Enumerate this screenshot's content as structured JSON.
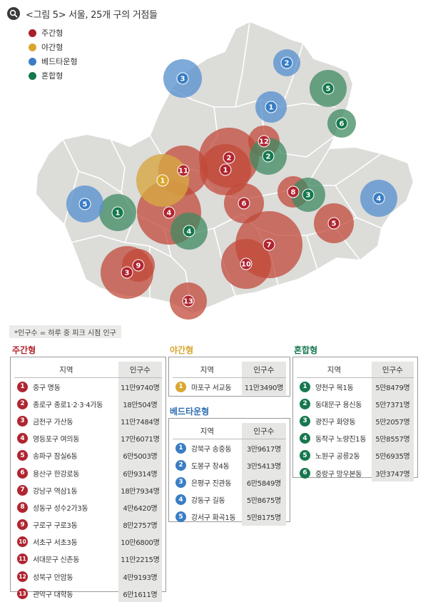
{
  "title": "<그림 5> 서울, 25개 구의 거점들",
  "legend": [
    {
      "label": "주간형",
      "color": "#a8202b"
    },
    {
      "label": "야간형",
      "color": "#d9a630"
    },
    {
      "label": "베드타운형",
      "color": "#3a7dc4"
    },
    {
      "label": "혼합형",
      "color": "#16784e"
    }
  ],
  "note": "*인구수 = 하루 중 피크 시점 인구",
  "tables": {
    "daytime": {
      "title": "주간형",
      "col_region": "지역",
      "col_pop": "인구수",
      "rows": [
        {
          "num": "1",
          "region": "중구 명동",
          "pop": "11만9740명"
        },
        {
          "num": "2",
          "region": "종로구 종로1·2·3·4가동",
          "pop": "18만504명"
        },
        {
          "num": "3",
          "region": "금천구 가산동",
          "pop": "11만7484명"
        },
        {
          "num": "4",
          "region": "영등포구 여의동",
          "pop": "17만6071명"
        },
        {
          "num": "5",
          "region": "송파구 잠실6동",
          "pop": "6만5003명"
        },
        {
          "num": "6",
          "region": "용산구 한강로동",
          "pop": "6만9314명"
        },
        {
          "num": "7",
          "region": "강남구 역삼1동",
          "pop": "18만7934명"
        },
        {
          "num": "8",
          "region": "성동구 성수2가3동",
          "pop": "4만6420명"
        },
        {
          "num": "9",
          "region": "구로구 구로3동",
          "pop": "8만2757명"
        },
        {
          "num": "10",
          "region": "서초구 서초3동",
          "pop": "10만6800명"
        },
        {
          "num": "11",
          "region": "서대문구 신촌동",
          "pop": "11만2215명"
        },
        {
          "num": "12",
          "region": "성북구 안암동",
          "pop": "4만9193명"
        },
        {
          "num": "13",
          "region": "관악구 대학동",
          "pop": "6만1611명"
        }
      ]
    },
    "night": {
      "title": "야간형",
      "col_region": "지역",
      "col_pop": "인구수",
      "rows": [
        {
          "num": "1",
          "region": "마포구 서교동",
          "pop": "11만3490명"
        }
      ]
    },
    "bedtown": {
      "title": "베드타운형",
      "col_region": "지역",
      "col_pop": "인구수",
      "rows": [
        {
          "num": "1",
          "region": "강북구 송중동",
          "pop": "3만9617명"
        },
        {
          "num": "2",
          "region": "도봉구 창4동",
          "pop": "3만5413명"
        },
        {
          "num": "3",
          "region": "은평구 진관동",
          "pop": "6만5849명"
        },
        {
          "num": "4",
          "region": "강동구 길동",
          "pop": "5만8675명"
        },
        {
          "num": "5",
          "region": "강서구 화곡1동",
          "pop": "5만8175명"
        }
      ]
    },
    "mixed": {
      "title": "혼합형",
      "col_region": "지역",
      "col_pop": "인구수",
      "rows": [
        {
          "num": "1",
          "region": "양천구 목1동",
          "pop": "5만8479명"
        },
        {
          "num": "2",
          "region": "동대문구 용신동",
          "pop": "5만7371명"
        },
        {
          "num": "3",
          "region": "광진구 화양동",
          "pop": "5만2057명"
        },
        {
          "num": "4",
          "region": "동작구 노량진1동",
          "pop": "5만8557명"
        },
        {
          "num": "5",
          "region": "노원구 공릉2동",
          "pop": "5만6935명"
        },
        {
          "num": "6",
          "region": "중랑구 망우본동",
          "pop": "3만3747명"
        }
      ]
    }
  },
  "map_markers": [
    {
      "type": "daytime",
      "num": "1"
    },
    {
      "type": "daytime",
      "num": "2"
    },
    {
      "type": "daytime",
      "num": "3"
    },
    {
      "type": "daytime",
      "num": "4"
    },
    {
      "type": "daytime",
      "num": "5"
    },
    {
      "type": "daytime",
      "num": "6"
    },
    {
      "type": "daytime",
      "num": "7"
    },
    {
      "type": "daytime",
      "num": "8"
    },
    {
      "type": "daytime",
      "num": "9"
    },
    {
      "type": "daytime",
      "num": "10"
    },
    {
      "type": "daytime",
      "num": "11"
    },
    {
      "type": "daytime",
      "num": "12"
    },
    {
      "type": "daytime",
      "num": "13"
    },
    {
      "type": "night",
      "num": "1"
    },
    {
      "type": "bedtown",
      "num": "1"
    },
    {
      "type": "bedtown",
      "num": "2"
    },
    {
      "type": "bedtown",
      "num": "3"
    },
    {
      "type": "bedtown",
      "num": "4"
    },
    {
      "type": "bedtown",
      "num": "5"
    },
    {
      "type": "mixed",
      "num": "1"
    },
    {
      "type": "mixed",
      "num": "2"
    },
    {
      "type": "mixed",
      "num": "3"
    },
    {
      "type": "mixed",
      "num": "4"
    },
    {
      "type": "mixed",
      "num": "5"
    },
    {
      "type": "mixed",
      "num": "6"
    }
  ]
}
